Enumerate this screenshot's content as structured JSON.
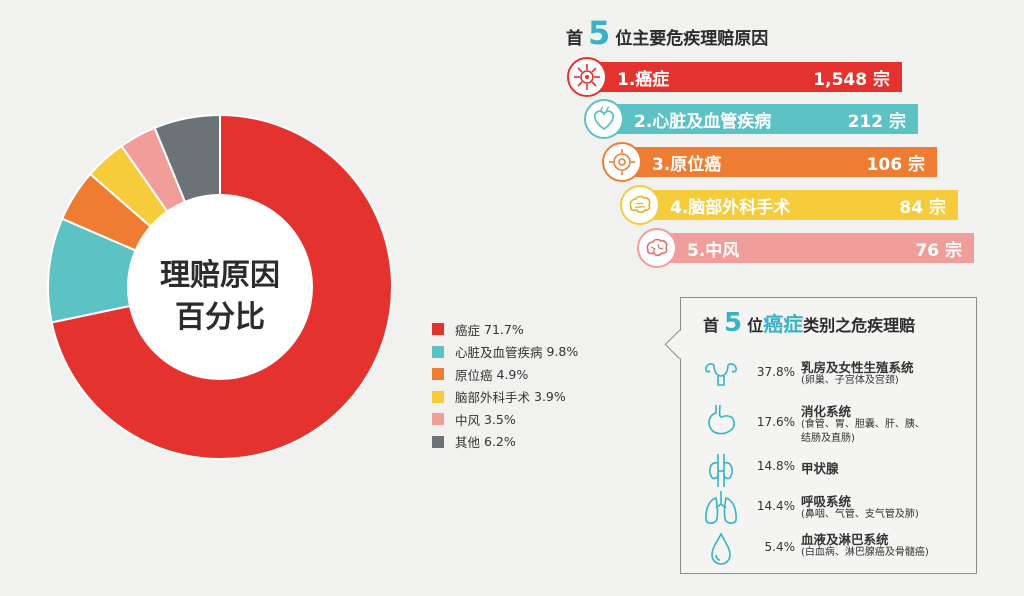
{
  "chart_data": [
    {
      "type": "pie",
      "title": "理赔原因百分比",
      "center_label_lines": [
        "理赔原因",
        "百分比"
      ],
      "slices": [
        {
          "label": "癌症",
          "value": 71.7,
          "display": "71.7%",
          "color": "#e4322f"
        },
        {
          "label": "心脏及血管疾病",
          "value": 9.8,
          "display": "9.8%",
          "color": "#5dc2c3"
        },
        {
          "label": "原位癌",
          "value": 4.9,
          "display": "4.9%",
          "color": "#ee7d33"
        },
        {
          "label": "脑部外科手术",
          "value": 3.9,
          "display": "3.9%",
          "color": "#f6cc3a"
        },
        {
          "label": "中风",
          "value": 3.5,
          "display": "3.5%",
          "color": "#f19e9a"
        },
        {
          "label": "其他",
          "value": 6.2,
          "display": "6.2%",
          "color": "#6c7377"
        }
      ]
    },
    {
      "type": "bar",
      "title": "首5位主要危疾理赔原因",
      "categories": [
        "1.癌症",
        "2.心脏及血管疾病",
        "3.原位癌",
        "4.脑部外科手术",
        "5.中风"
      ],
      "values": [
        1548,
        212,
        106,
        84,
        76
      ],
      "value_labels": [
        "1,548",
        "212",
        "106",
        "84",
        "76"
      ],
      "unit": "宗",
      "colors": [
        "#e4322f",
        "#5dc2c3",
        "#ee7d33",
        "#f6cc3a",
        "#f19e9a"
      ]
    },
    {
      "type": "table",
      "title": "首5位癌症类别之危疾理赔",
      "rows": [
        {
          "pct": "37.8%",
          "value": 37.8,
          "name": "乳房及女性生殖系统",
          "sub": [
            "(卵巢、子宫体及宫颈)"
          ],
          "icon": "female-reproductive-icon"
        },
        {
          "pct": "17.6%",
          "value": 17.6,
          "name": "消化系统",
          "sub": [
            "(食管、胃、胆囊、肝、胰、",
            "结肠及直肠)"
          ],
          "icon": "stomach-icon"
        },
        {
          "pct": "14.8%",
          "value": 14.8,
          "name": "甲状腺",
          "sub": [],
          "icon": "thyroid-icon"
        },
        {
          "pct": "14.4%",
          "value": 14.4,
          "name": "呼吸系统",
          "sub": [
            "(鼻咽、气管、支气管及肺)"
          ],
          "icon": "lungs-icon"
        },
        {
          "pct": "5.4%",
          "value": 5.4,
          "name": "血液及淋巴系统",
          "sub": [
            "(白血病、淋巴腺癌及骨髓癌)"
          ],
          "icon": "blood-drop-icon"
        }
      ]
    }
  ],
  "top5": {
    "prefix": "首",
    "number": "5",
    "suffix": "位主要危疾理赔原因"
  },
  "cancer_box": {
    "prefix": "首",
    "number": "5",
    "middle": "位",
    "highlight": "癌症",
    "suffix": "类别之危疾理赔"
  },
  "colors": {
    "accent": "#37b3c7",
    "background": "#f1f1ef"
  }
}
